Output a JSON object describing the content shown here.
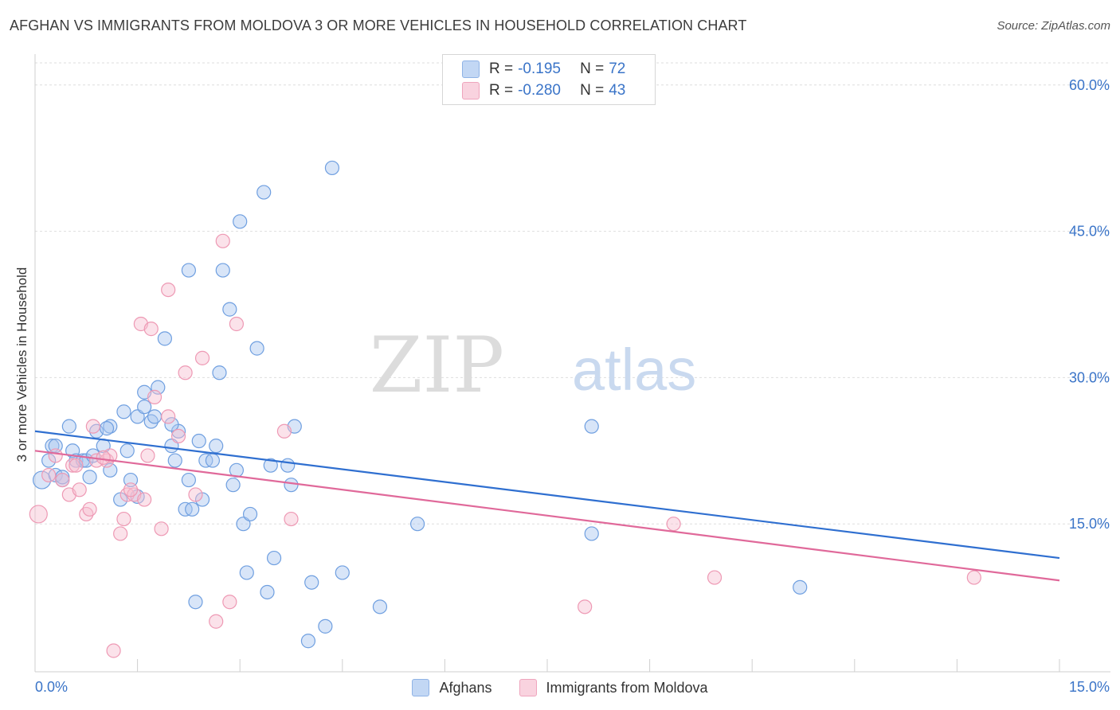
{
  "title": "AFGHAN VS IMMIGRANTS FROM MOLDOVA 3 OR MORE VEHICLES IN HOUSEHOLD CORRELATION CHART",
  "source": "Source: ZipAtlas.com",
  "watermark": {
    "zip": "ZIP",
    "atlas": "atlas"
  },
  "legend": {
    "rows": [
      {
        "r_label": "R =",
        "r_value": "-0.195",
        "n_label": "N =",
        "n_value": "72",
        "color": "#a9c6ef"
      },
      {
        "r_label": "R =",
        "r_value": "-0.280",
        "n_label": "N =",
        "n_value": "43",
        "color": "#f6bfd0"
      }
    ]
  },
  "bottom_legend": [
    {
      "label": "Afghans",
      "color": "#a9c6ef"
    },
    {
      "label": "Immigrants from Moldova",
      "color": "#f6bfd0"
    }
  ],
  "chart_data": {
    "type": "scatter",
    "title": "AFGHAN VS IMMIGRANTS FROM MOLDOVA 3 OR MORE VEHICLES IN HOUSEHOLD CORRELATION CHART",
    "xlabel": "",
    "ylabel": "3 or more Vehicles in Household",
    "xlim": [
      0,
      15
    ],
    "ylim": [
      0,
      63
    ],
    "x_ticks_labels": [
      "0.0%",
      "15.0%"
    ],
    "y_ticks": [
      15,
      30,
      45,
      60
    ],
    "y_ticks_labels": [
      "15.0%",
      "30.0%",
      "45.0%",
      "60.0%"
    ],
    "grid": true,
    "series": [
      {
        "name": "Afghans",
        "color": "#6f9fe0",
        "fill": "#a9c6ef",
        "trend": {
          "x": [
            0,
            15
          ],
          "y": [
            24.5,
            11.5
          ],
          "color": "#2f6fd0"
        },
        "points": [
          [
            0.1,
            19.5
          ],
          [
            0.2,
            21.5
          ],
          [
            0.25,
            23
          ],
          [
            0.3,
            20
          ],
          [
            0.3,
            23
          ],
          [
            0.4,
            19.5
          ],
          [
            0.5,
            25
          ],
          [
            0.55,
            22.5
          ],
          [
            0.6,
            21.5
          ],
          [
            0.7,
            21.5
          ],
          [
            0.75,
            21.5
          ],
          [
            0.8,
            19.8
          ],
          [
            0.9,
            24.5
          ],
          [
            1.0,
            23
          ],
          [
            1.1,
            20.5
          ],
          [
            1.1,
            25
          ],
          [
            1.25,
            17.5
          ],
          [
            1.3,
            26.5
          ],
          [
            1.35,
            22.5
          ],
          [
            1.4,
            19.5
          ],
          [
            1.5,
            26
          ],
          [
            1.6,
            27
          ],
          [
            1.6,
            28.5
          ],
          [
            1.7,
            25.5
          ],
          [
            1.75,
            26
          ],
          [
            1.8,
            29
          ],
          [
            1.9,
            34
          ],
          [
            2.0,
            23
          ],
          [
            2.05,
            21.5
          ],
          [
            2.1,
            24.5
          ],
          [
            2.2,
            16.5
          ],
          [
            2.25,
            41
          ],
          [
            2.25,
            19.5
          ],
          [
            2.3,
            16.5
          ],
          [
            2.4,
            23.5
          ],
          [
            2.45,
            17.5
          ],
          [
            2.5,
            21.5
          ],
          [
            2.6,
            21.5
          ],
          [
            2.65,
            23
          ],
          [
            2.7,
            30.5
          ],
          [
            2.75,
            41
          ],
          [
            2.85,
            37
          ],
          [
            2.9,
            19
          ],
          [
            2.95,
            20.5
          ],
          [
            3.0,
            46
          ],
          [
            3.05,
            15
          ],
          [
            3.1,
            10
          ],
          [
            3.25,
            33
          ],
          [
            3.35,
            49
          ],
          [
            3.4,
            8
          ],
          [
            3.45,
            21
          ],
          [
            3.5,
            11.5
          ],
          [
            3.7,
            21
          ],
          [
            3.75,
            19
          ],
          [
            3.8,
            25
          ],
          [
            4.0,
            3
          ],
          [
            4.05,
            9
          ],
          [
            4.25,
            4.5
          ],
          [
            4.35,
            51.5
          ],
          [
            4.5,
            10
          ],
          [
            5.05,
            6.5
          ],
          [
            5.6,
            15
          ],
          [
            8.15,
            25
          ],
          [
            8.15,
            14
          ],
          [
            11.2,
            8.5
          ],
          [
            2.35,
            7
          ],
          [
            0.4,
            19.8
          ],
          [
            0.85,
            22
          ],
          [
            1.05,
            24.8
          ],
          [
            1.5,
            17.8
          ],
          [
            2.0,
            25.2
          ],
          [
            3.15,
            16
          ]
        ]
      },
      {
        "name": "Immigrants from Moldova",
        "color": "#ee99b4",
        "fill": "#f6bfd0",
        "trend": {
          "x": [
            0,
            15
          ],
          "y": [
            22.5,
            9.2
          ],
          "color": "#e0699a"
        },
        "points": [
          [
            0.05,
            16
          ],
          [
            0.2,
            20
          ],
          [
            0.3,
            22
          ],
          [
            0.4,
            19.5
          ],
          [
            0.5,
            18
          ],
          [
            0.55,
            21
          ],
          [
            0.65,
            18.5
          ],
          [
            0.75,
            16
          ],
          [
            0.8,
            16.5
          ],
          [
            0.85,
            25
          ],
          [
            0.9,
            21.5
          ],
          [
            1.05,
            21.5
          ],
          [
            1.1,
            22
          ],
          [
            1.15,
            2
          ],
          [
            1.25,
            14
          ],
          [
            1.3,
            15.5
          ],
          [
            1.35,
            18
          ],
          [
            1.45,
            18
          ],
          [
            1.55,
            35.5
          ],
          [
            1.6,
            17.5
          ],
          [
            1.65,
            22
          ],
          [
            1.7,
            35
          ],
          [
            1.75,
            28
          ],
          [
            1.85,
            14.5
          ],
          [
            1.95,
            26
          ],
          [
            1.95,
            39
          ],
          [
            2.1,
            24
          ],
          [
            2.2,
            30.5
          ],
          [
            2.35,
            18
          ],
          [
            2.45,
            32
          ],
          [
            2.65,
            5
          ],
          [
            2.75,
            44
          ],
          [
            2.85,
            7
          ],
          [
            2.95,
            35.5
          ],
          [
            3.65,
            24.5
          ],
          [
            3.75,
            15.5
          ],
          [
            8.05,
            6.5
          ],
          [
            9.35,
            15
          ],
          [
            9.95,
            9.5
          ],
          [
            13.75,
            9.5
          ],
          [
            1.0,
            21.8
          ],
          [
            0.6,
            21
          ],
          [
            1.4,
            18.5
          ]
        ]
      }
    ]
  }
}
